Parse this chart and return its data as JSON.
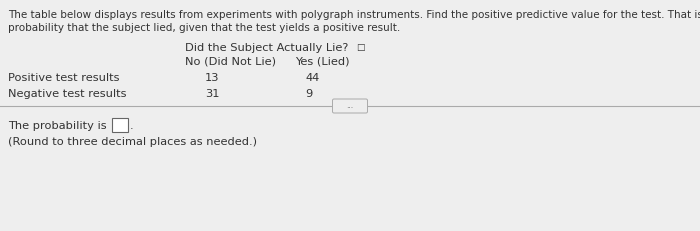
{
  "bg_color": "#eeeeee",
  "header_line1": "The table below displays results from experiments with polygraph instruments. Find the positive predictive value for the test. That is, find the",
  "header_line2": "probability that the subject lied, given that the test yields a positive result.",
  "table_header_main": "Did the Subject Actually Lie?",
  "col1_header": "No (Did Not Lie)",
  "col2_header": "Yes (Lied)",
  "row1_label": "Positive test results",
  "row2_label": "Negative test results",
  "row1_col1": "13",
  "row1_col2": "44",
  "row2_col1": "31",
  "row2_col2": "9",
  "footer_line1": "The probability is",
  "footer_line2": "(Round to three decimal places as needed.)",
  "text_color": "#333333",
  "header_fontsize": 7.5,
  "table_fontsize": 8.2
}
